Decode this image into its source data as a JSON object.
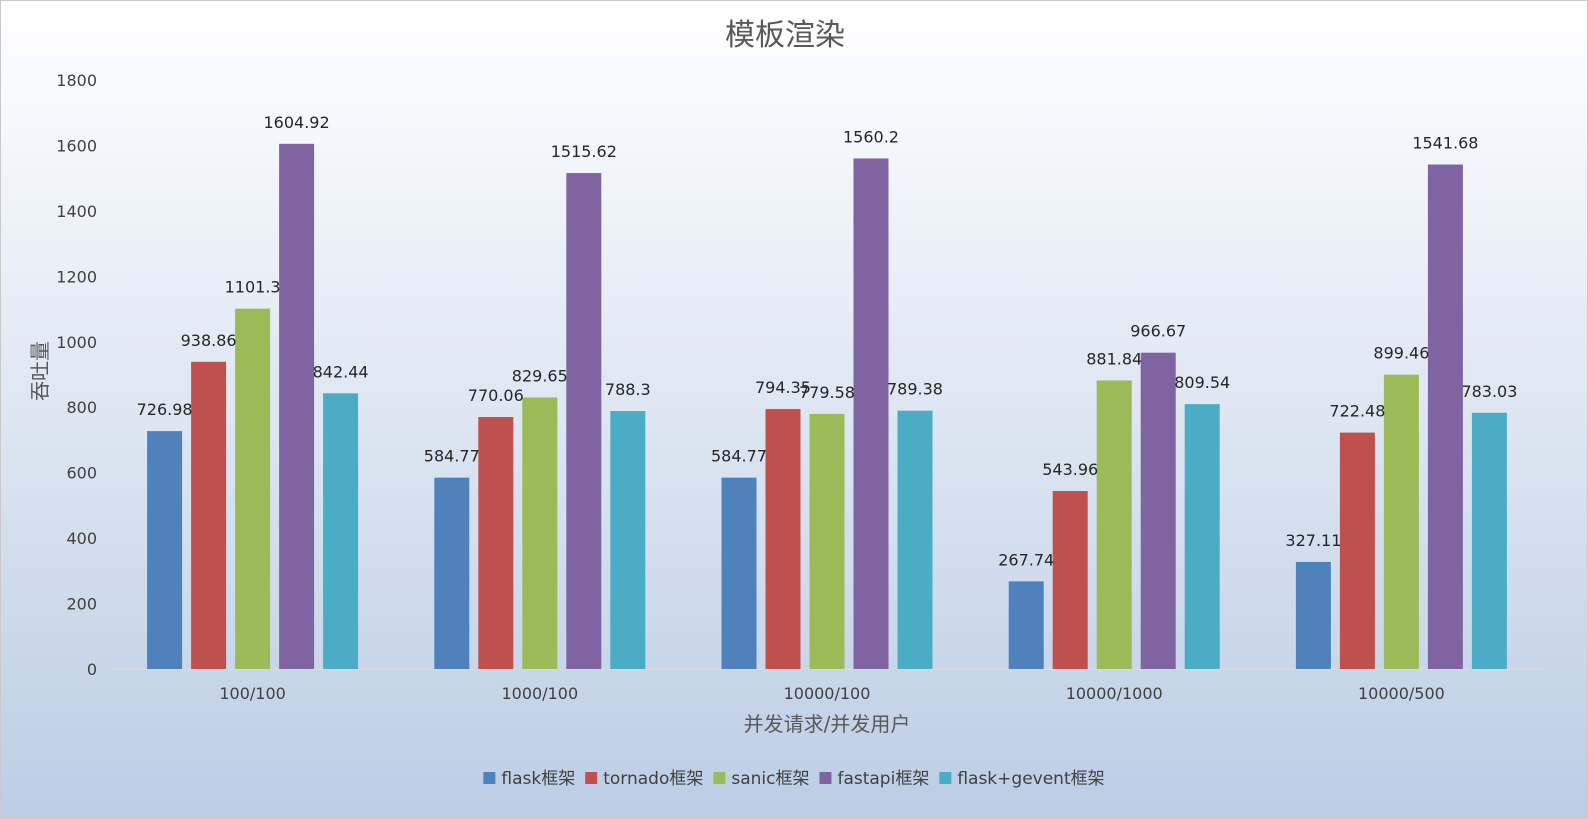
{
  "chart_data": {
    "type": "bar",
    "title": "模板渲染",
    "xlabel": "并发请求/并发用户",
    "ylabel": "吞吐量",
    "categories": [
      "100/100",
      "1000/100",
      "10000/100",
      "10000/1000",
      "10000/500"
    ],
    "ylim": [
      0,
      1800
    ],
    "yticks": [
      0,
      200,
      400,
      600,
      800,
      1000,
      1200,
      1400,
      1600,
      1800
    ],
    "ytick_labels": [
      "0",
      "200",
      "400",
      "600",
      "800",
      "1000",
      "1200",
      "1400",
      "1600",
      "1800"
    ],
    "grid": false,
    "legend_position": "bottom",
    "series": [
      {
        "name": "flask框架",
        "color": "#4f81bd",
        "values": [
          726.98,
          584.77,
          584.77,
          267.74,
          327.11
        ],
        "labels": [
          "726.98",
          "584.77",
          "584.77",
          "267.74",
          "327.11"
        ]
      },
      {
        "name": "tornado框架",
        "color": "#c0504d",
        "values": [
          938.86,
          770.06,
          794.35,
          543.96,
          722.48
        ],
        "labels": [
          "938.86",
          "770.06",
          "794.35",
          "543.96",
          "722.48"
        ]
      },
      {
        "name": "sanic框架",
        "color": "#9bbb59",
        "values": [
          1101.3,
          829.65,
          779.58,
          881.84,
          899.46
        ],
        "labels": [
          "1101.3",
          "829.65",
          "779.58",
          "881.84",
          "899.46"
        ]
      },
      {
        "name": "fastapi框架",
        "color": "#8064a2",
        "values": [
          1604.92,
          1515.62,
          1560.2,
          966.67,
          1541.68
        ],
        "labels": [
          "1604.92",
          "1515.62",
          "1560.2",
          "966.67",
          "1541.68"
        ]
      },
      {
        "name": "flask+gevent框架",
        "color": "#4bacc6",
        "values": [
          842.44,
          788.3,
          789.38,
          809.54,
          783.03
        ],
        "labels": [
          "842.44",
          "788.3",
          "789.38",
          "809.54",
          "783.03"
        ]
      }
    ]
  }
}
